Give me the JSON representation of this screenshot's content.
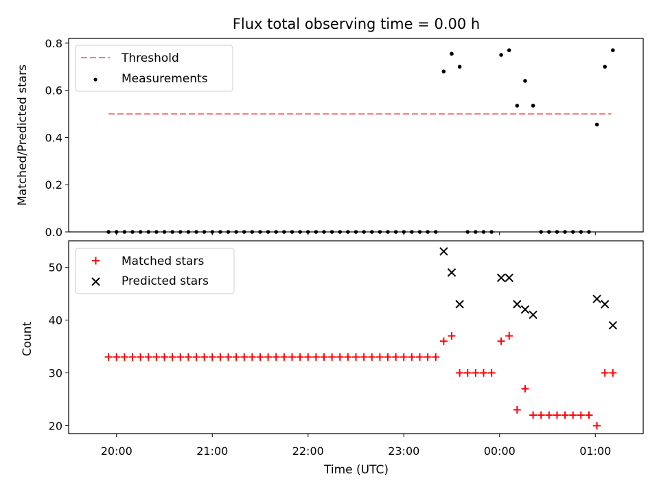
{
  "chart_data": [
    {
      "type": "scatter",
      "title": "Flux total observing time = 0.00 h",
      "xlabel": "",
      "ylabel": "Matched/Predicted stars",
      "ylim": [
        0,
        0.82
      ],
      "yticks": [
        "0.0",
        "0.2",
        "0.4",
        "0.6",
        "0.8"
      ],
      "ytick_values": [
        0,
        0.2,
        0.4,
        0.6,
        0.8
      ],
      "grid": false,
      "legend_position": "top-left",
      "threshold": {
        "name": "Threshold",
        "value": 0.5,
        "x_range": [
          "19:55",
          "01:10"
        ],
        "color": "#ff7a7a"
      },
      "series": [
        {
          "name": "Measurements",
          "color": "#000000",
          "points": [
            [
              "19:55",
              0
            ],
            [
              "20:00",
              0
            ],
            [
              "20:05",
              0
            ],
            [
              "20:10",
              0
            ],
            [
              "20:15",
              0
            ],
            [
              "20:20",
              0
            ],
            [
              "20:25",
              0
            ],
            [
              "20:30",
              0
            ],
            [
              "20:35",
              0
            ],
            [
              "20:40",
              0
            ],
            [
              "20:45",
              0
            ],
            [
              "20:50",
              0
            ],
            [
              "20:55",
              0
            ],
            [
              "21:00",
              0
            ],
            [
              "21:05",
              0
            ],
            [
              "21:10",
              0
            ],
            [
              "21:15",
              0
            ],
            [
              "21:20",
              0
            ],
            [
              "21:25",
              0
            ],
            [
              "21:30",
              0
            ],
            [
              "21:35",
              0
            ],
            [
              "21:40",
              0
            ],
            [
              "21:45",
              0
            ],
            [
              "21:50",
              0
            ],
            [
              "21:55",
              0
            ],
            [
              "22:00",
              0
            ],
            [
              "22:05",
              0
            ],
            [
              "22:10",
              0
            ],
            [
              "22:15",
              0
            ],
            [
              "22:20",
              0
            ],
            [
              "22:25",
              0
            ],
            [
              "22:30",
              0
            ],
            [
              "22:35",
              0
            ],
            [
              "22:40",
              0
            ],
            [
              "22:45",
              0
            ],
            [
              "22:50",
              0
            ],
            [
              "22:55",
              0
            ],
            [
              "23:00",
              0
            ],
            [
              "23:05",
              0
            ],
            [
              "23:10",
              0
            ],
            [
              "23:15",
              0
            ],
            [
              "23:20",
              0
            ],
            [
              "23:25",
              0.68
            ],
            [
              "23:30",
              0.755
            ],
            [
              "23:35",
              0.7
            ],
            [
              "23:40",
              0
            ],
            [
              "23:45",
              0
            ],
            [
              "23:50",
              0
            ],
            [
              "23:55",
              0
            ],
            [
              "00:01",
              0.75
            ],
            [
              "00:06",
              0.77
            ],
            [
              "00:11",
              0.535
            ],
            [
              "00:16",
              0.64
            ],
            [
              "00:21",
              0.535
            ],
            [
              "00:26",
              0
            ],
            [
              "00:31",
              0
            ],
            [
              "00:36",
              0
            ],
            [
              "00:41",
              0
            ],
            [
              "00:46",
              0
            ],
            [
              "00:51",
              0
            ],
            [
              "00:56",
              0
            ],
            [
              "01:01",
              0.455
            ],
            [
              "01:06",
              0.7
            ],
            [
              "01:11",
              0.77
            ]
          ]
        }
      ]
    },
    {
      "type": "scatter",
      "title": "",
      "xlabel": "Time (UTC)",
      "ylabel": "Count",
      "ylim": [
        18.5,
        55
      ],
      "yticks": [
        "20",
        "30",
        "40",
        "50"
      ],
      "ytick_values": [
        20,
        30,
        40,
        50
      ],
      "x_domain": [
        "19:30",
        "01:30"
      ],
      "xticks": [
        "20:00",
        "21:00",
        "22:00",
        "23:00",
        "00:00",
        "01:00"
      ],
      "grid": false,
      "legend_position": "top-left",
      "series": [
        {
          "name": "Matched stars",
          "color": "#ff0000",
          "marker": "+",
          "points": [
            [
              "19:55",
              33
            ],
            [
              "20:00",
              33
            ],
            [
              "20:05",
              33
            ],
            [
              "20:10",
              33
            ],
            [
              "20:15",
              33
            ],
            [
              "20:20",
              33
            ],
            [
              "20:25",
              33
            ],
            [
              "20:30",
              33
            ],
            [
              "20:35",
              33
            ],
            [
              "20:40",
              33
            ],
            [
              "20:45",
              33
            ],
            [
              "20:50",
              33
            ],
            [
              "20:55",
              33
            ],
            [
              "21:00",
              33
            ],
            [
              "21:05",
              33
            ],
            [
              "21:10",
              33
            ],
            [
              "21:15",
              33
            ],
            [
              "21:20",
              33
            ],
            [
              "21:25",
              33
            ],
            [
              "21:30",
              33
            ],
            [
              "21:35",
              33
            ],
            [
              "21:40",
              33
            ],
            [
              "21:45",
              33
            ],
            [
              "21:50",
              33
            ],
            [
              "21:55",
              33
            ],
            [
              "22:00",
              33
            ],
            [
              "22:05",
              33
            ],
            [
              "22:10",
              33
            ],
            [
              "22:15",
              33
            ],
            [
              "22:20",
              33
            ],
            [
              "22:25",
              33
            ],
            [
              "22:30",
              33
            ],
            [
              "22:35",
              33
            ],
            [
              "22:40",
              33
            ],
            [
              "22:45",
              33
            ],
            [
              "22:50",
              33
            ],
            [
              "22:55",
              33
            ],
            [
              "23:00",
              33
            ],
            [
              "23:05",
              33
            ],
            [
              "23:10",
              33
            ],
            [
              "23:15",
              33
            ],
            [
              "23:20",
              33
            ],
            [
              "23:25",
              36
            ],
            [
              "23:30",
              37
            ],
            [
              "23:35",
              30
            ],
            [
              "23:40",
              30
            ],
            [
              "23:45",
              30
            ],
            [
              "23:50",
              30
            ],
            [
              "23:55",
              30
            ],
            [
              "00:01",
              36
            ],
            [
              "00:06",
              37
            ],
            [
              "00:11",
              23
            ],
            [
              "00:16",
              27
            ],
            [
              "00:21",
              22
            ],
            [
              "00:26",
              22
            ],
            [
              "00:31",
              22
            ],
            [
              "00:36",
              22
            ],
            [
              "00:41",
              22
            ],
            [
              "00:46",
              22
            ],
            [
              "00:51",
              22
            ],
            [
              "00:56",
              22
            ],
            [
              "01:01",
              20
            ],
            [
              "01:06",
              30
            ],
            [
              "01:11",
              30
            ]
          ]
        },
        {
          "name": "Predicted stars",
          "color": "#000000",
          "marker": "x",
          "points": [
            [
              "23:25",
              53
            ],
            [
              "23:30",
              49
            ],
            [
              "23:35",
              43
            ],
            [
              "00:01",
              48
            ],
            [
              "00:06",
              48
            ],
            [
              "00:11",
              43
            ],
            [
              "00:16",
              42
            ],
            [
              "00:21",
              41
            ],
            [
              "01:01",
              44
            ],
            [
              "01:06",
              43
            ],
            [
              "01:11",
              39
            ]
          ]
        }
      ]
    }
  ]
}
